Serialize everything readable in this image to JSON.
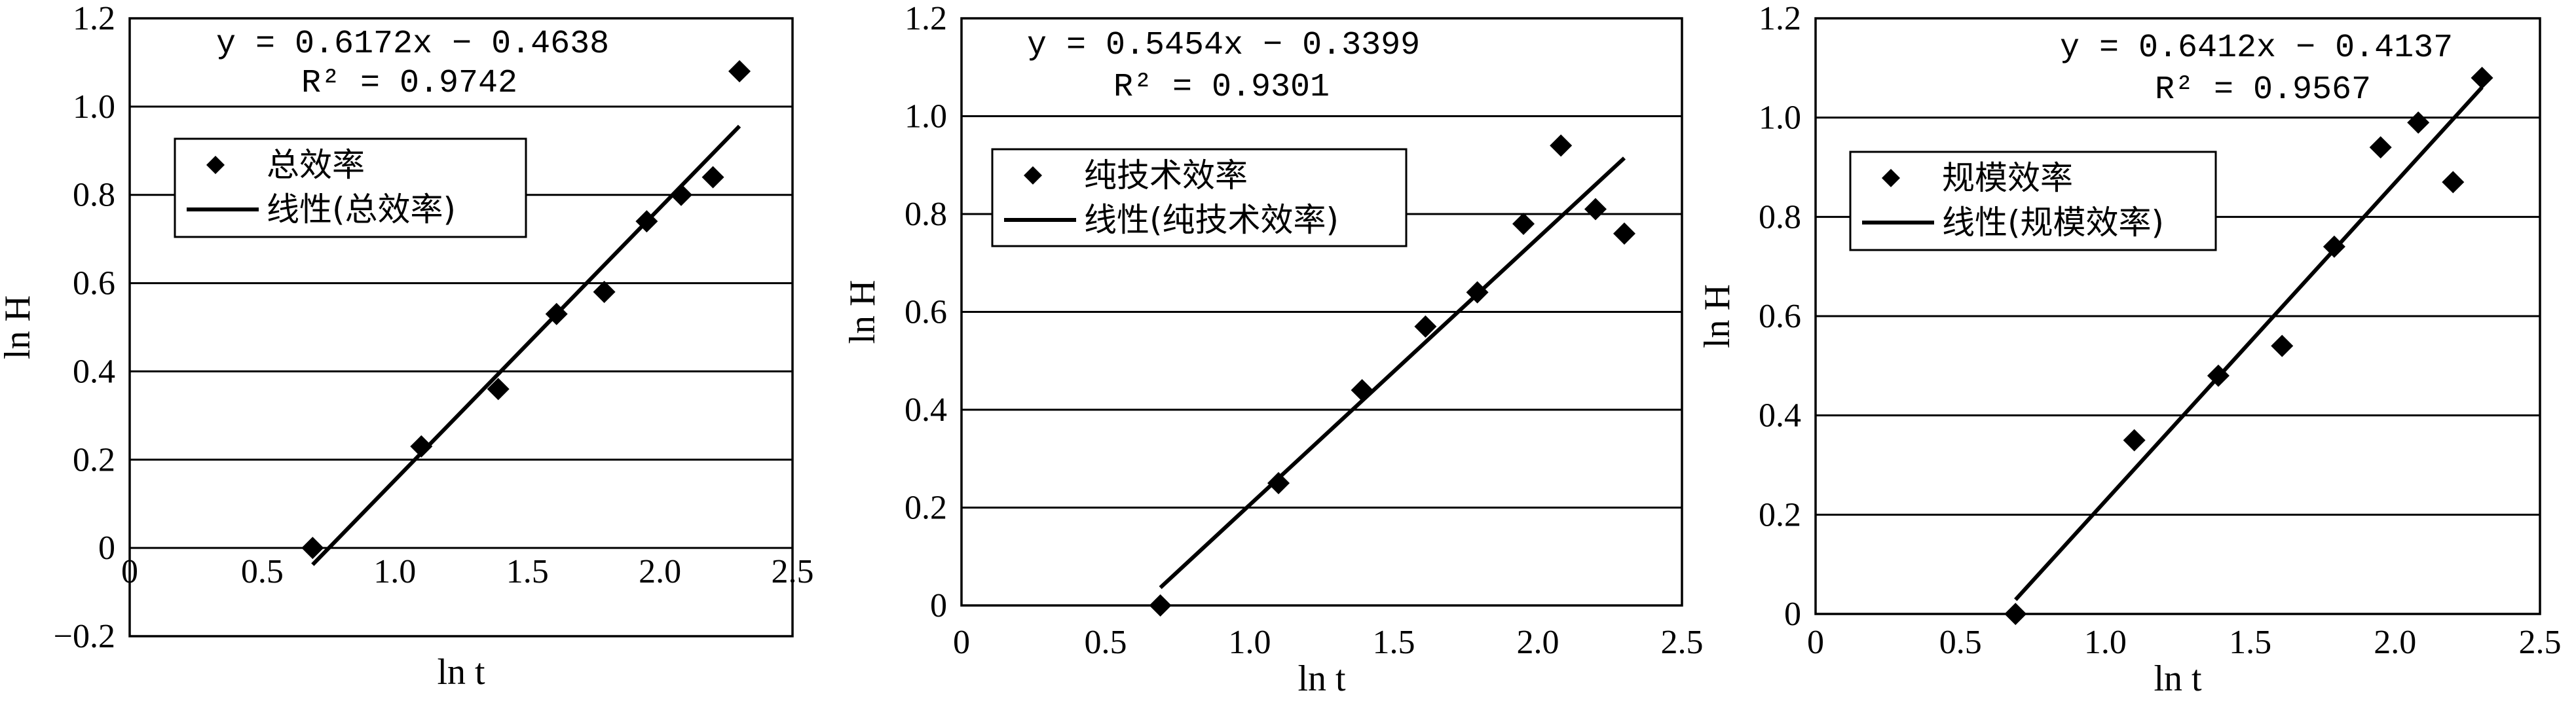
{
  "chart_data": [
    {
      "type": "scatter",
      "xlabel": "ln t",
      "ylabel": "ln H",
      "xlim": [
        0,
        2.5
      ],
      "ylim": [
        -0.2,
        1.2
      ],
      "x_ticks": [
        "0",
        "0.5",
        "1.0",
        "1.5",
        "2.0",
        "2.5"
      ],
      "y_ticks": [
        "−0.2",
        "0",
        "0.2",
        "0.4",
        "0.6",
        "0.8",
        "1.0",
        "1.2"
      ],
      "y_tick_values": [
        -0.2,
        0,
        0.2,
        0.4,
        0.6,
        0.8,
        1.0,
        1.2
      ],
      "grid": "horizontal",
      "legend_position": "upper-left",
      "equation": "y = 0.6172x − 0.4638",
      "r2": "R² = 0.9742",
      "series": [
        {
          "name": "总效率",
          "marker": "diamond",
          "x": [
            0.69,
            1.1,
            1.39,
            1.61,
            1.79,
            1.95,
            2.08,
            2.2,
            2.3
          ],
          "y": [
            0.0,
            0.23,
            0.36,
            0.53,
            0.58,
            0.74,
            0.8,
            0.84,
            1.08
          ]
        },
        {
          "name": "线性(总效率)",
          "marker": "line",
          "slope": 0.6172,
          "intercept": -0.4638,
          "x_range": [
            0.69,
            2.3
          ]
        }
      ]
    },
    {
      "type": "scatter",
      "xlabel": "ln t",
      "ylabel": "ln H",
      "xlim": [
        0,
        2.5
      ],
      "ylim": [
        0,
        1.2
      ],
      "x_ticks": [
        "0",
        "0.5",
        "1.0",
        "1.5",
        "2.0",
        "2.5"
      ],
      "y_ticks": [
        "0",
        "0.2",
        "0.4",
        "0.6",
        "0.8",
        "1.0",
        "1.2"
      ],
      "y_tick_values": [
        0,
        0.2,
        0.4,
        0.6,
        0.8,
        1.0,
        1.2
      ],
      "grid": "horizontal",
      "legend_position": "upper-left",
      "equation": "y = 0.5454x − 0.3399",
      "r2": "R² = 0.9301",
      "series": [
        {
          "name": "纯技术效率",
          "marker": "diamond",
          "x": [
            0.69,
            1.1,
            1.39,
            1.61,
            1.79,
            1.95,
            2.08,
            2.2,
            2.3
          ],
          "y": [
            0.0,
            0.25,
            0.44,
            0.57,
            0.64,
            0.78,
            0.94,
            0.81,
            0.76
          ]
        },
        {
          "name": "线性(纯技术效率)",
          "marker": "line",
          "slope": 0.5454,
          "intercept": -0.3399,
          "x_range": [
            0.69,
            2.3
          ]
        }
      ]
    },
    {
      "type": "scatter",
      "xlabel": "ln t",
      "ylabel": "ln H",
      "xlim": [
        0,
        2.5
      ],
      "ylim": [
        0,
        1.2
      ],
      "x_ticks": [
        "0",
        "0.5",
        "1.0",
        "1.5",
        "2.0",
        "2.5"
      ],
      "y_ticks": [
        "0",
        "0.2",
        "0.4",
        "0.6",
        "0.8",
        "1.0",
        "1.2"
      ],
      "y_tick_values": [
        0,
        0.2,
        0.4,
        0.6,
        0.8,
        1.0,
        1.2
      ],
      "grid": "horizontal",
      "legend_position": "upper-left",
      "equation": "y = 0.6412x − 0.4137",
      "r2": "R² = 0.9567",
      "series": [
        {
          "name": "规模效率",
          "marker": "diamond",
          "x": [
            0.69,
            1.1,
            1.39,
            1.61,
            1.79,
            1.95,
            2.08,
            2.2,
            2.3
          ],
          "y": [
            0.0,
            0.35,
            0.48,
            0.54,
            0.74,
            0.94,
            0.99,
            0.87,
            1.08
          ]
        },
        {
          "name": "线性(规模效率)",
          "marker": "line",
          "slope": 0.6412,
          "intercept": -0.4137,
          "x_range": [
            0.69,
            2.3
          ]
        }
      ]
    }
  ]
}
